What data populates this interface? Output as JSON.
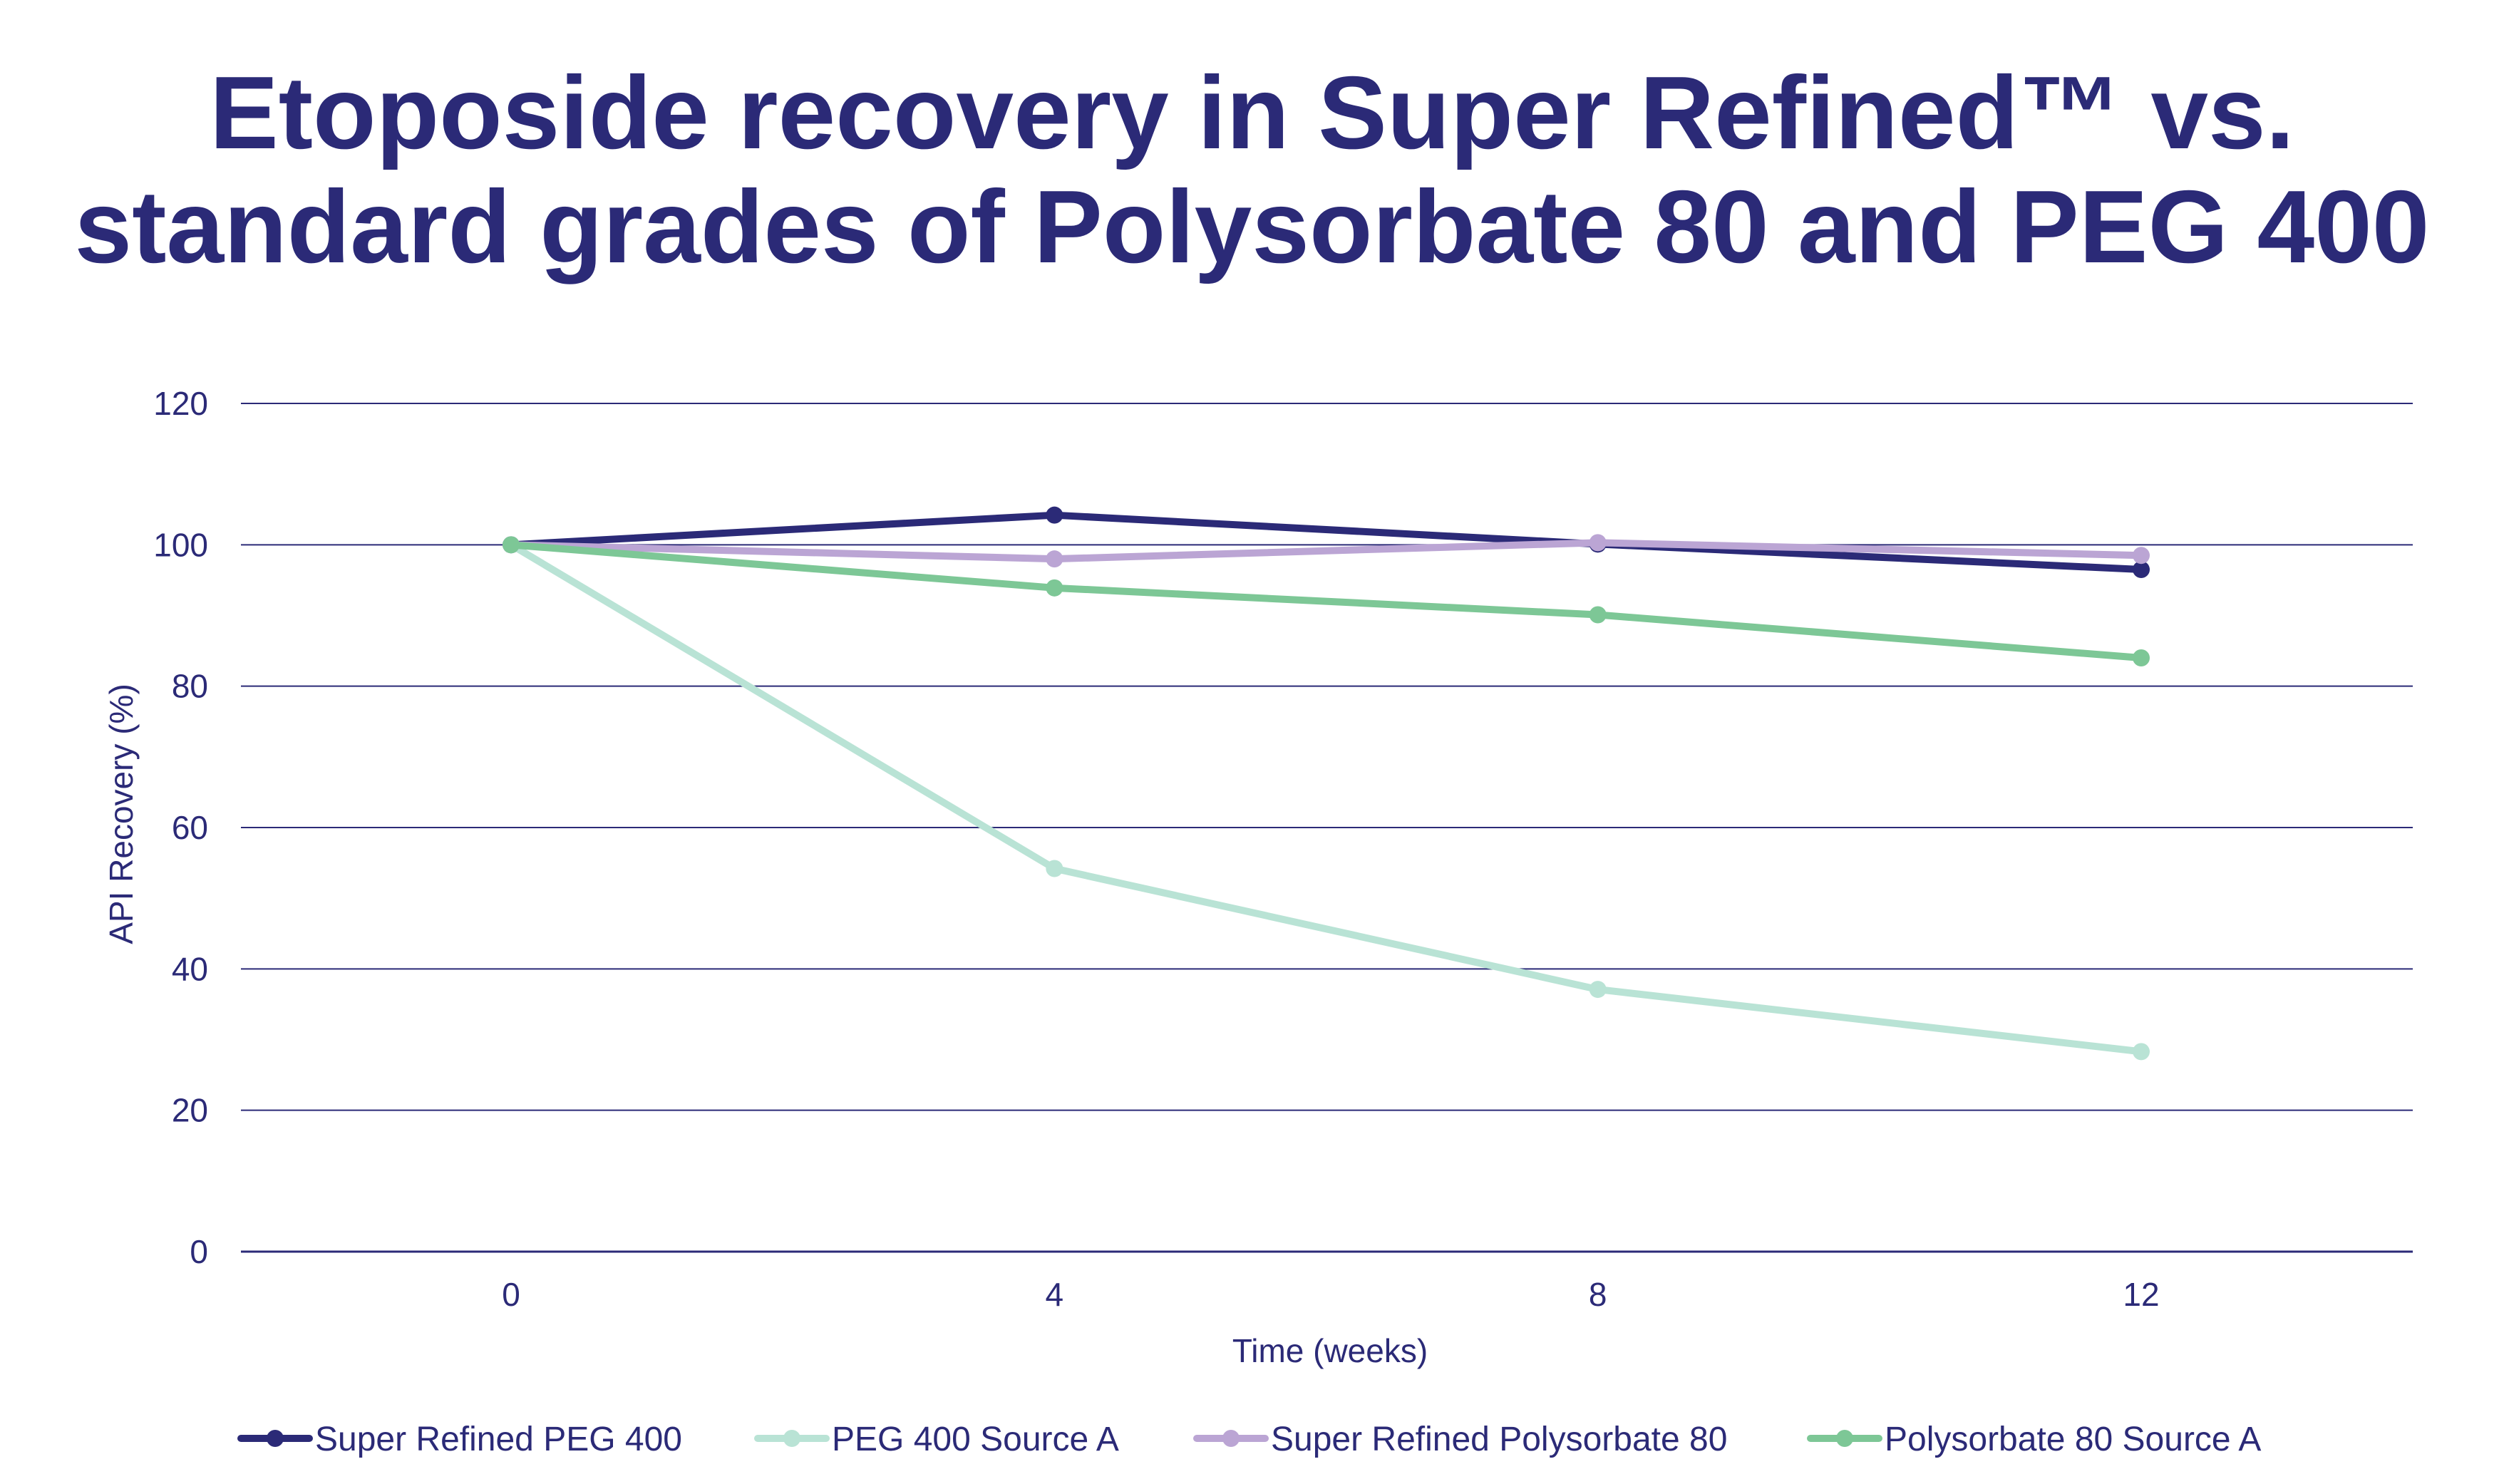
{
  "chart_data": {
    "type": "line",
    "title_lines": [
      "Etoposide recovery in Super Refined™ vs.",
      "standard grades of Polysorbate 80 and PEG 400"
    ],
    "xlabel": "Time (weeks)",
    "ylabel": "API Recovery (%)",
    "x": [
      0,
      4,
      8,
      12
    ],
    "x_tick_labels": [
      "0",
      "4",
      "8",
      "12"
    ],
    "ylim": [
      0,
      120
    ],
    "y_ticks": [
      0,
      20,
      40,
      60,
      80,
      100,
      120
    ],
    "y_tick_labels": [
      "0",
      "20",
      "40",
      "60",
      "80",
      "100",
      "120"
    ],
    "grid": "horizontal",
    "legend_position": "bottom",
    "series": [
      {
        "name": "Super Refined PEG 400",
        "color": "#2b2a77",
        "values": [
          100,
          104.2,
          100.1,
          96.5
        ]
      },
      {
        "name": "PEG 400 Source A",
        "color": "#b9e3d5",
        "values": [
          100,
          54.2,
          37.1,
          28.3
        ]
      },
      {
        "name": "Super Refined Polysorbate 80",
        "color": "#bba5d4",
        "values": [
          100,
          98,
          100.3,
          98.5
        ]
      },
      {
        "name": "Polysorbate 80 Source A",
        "color": "#7dc796",
        "values": [
          100,
          93.9,
          90.1,
          84
        ]
      }
    ],
    "colors": {
      "text": "#2b2a77",
      "gridline": "#2b2a77"
    }
  }
}
